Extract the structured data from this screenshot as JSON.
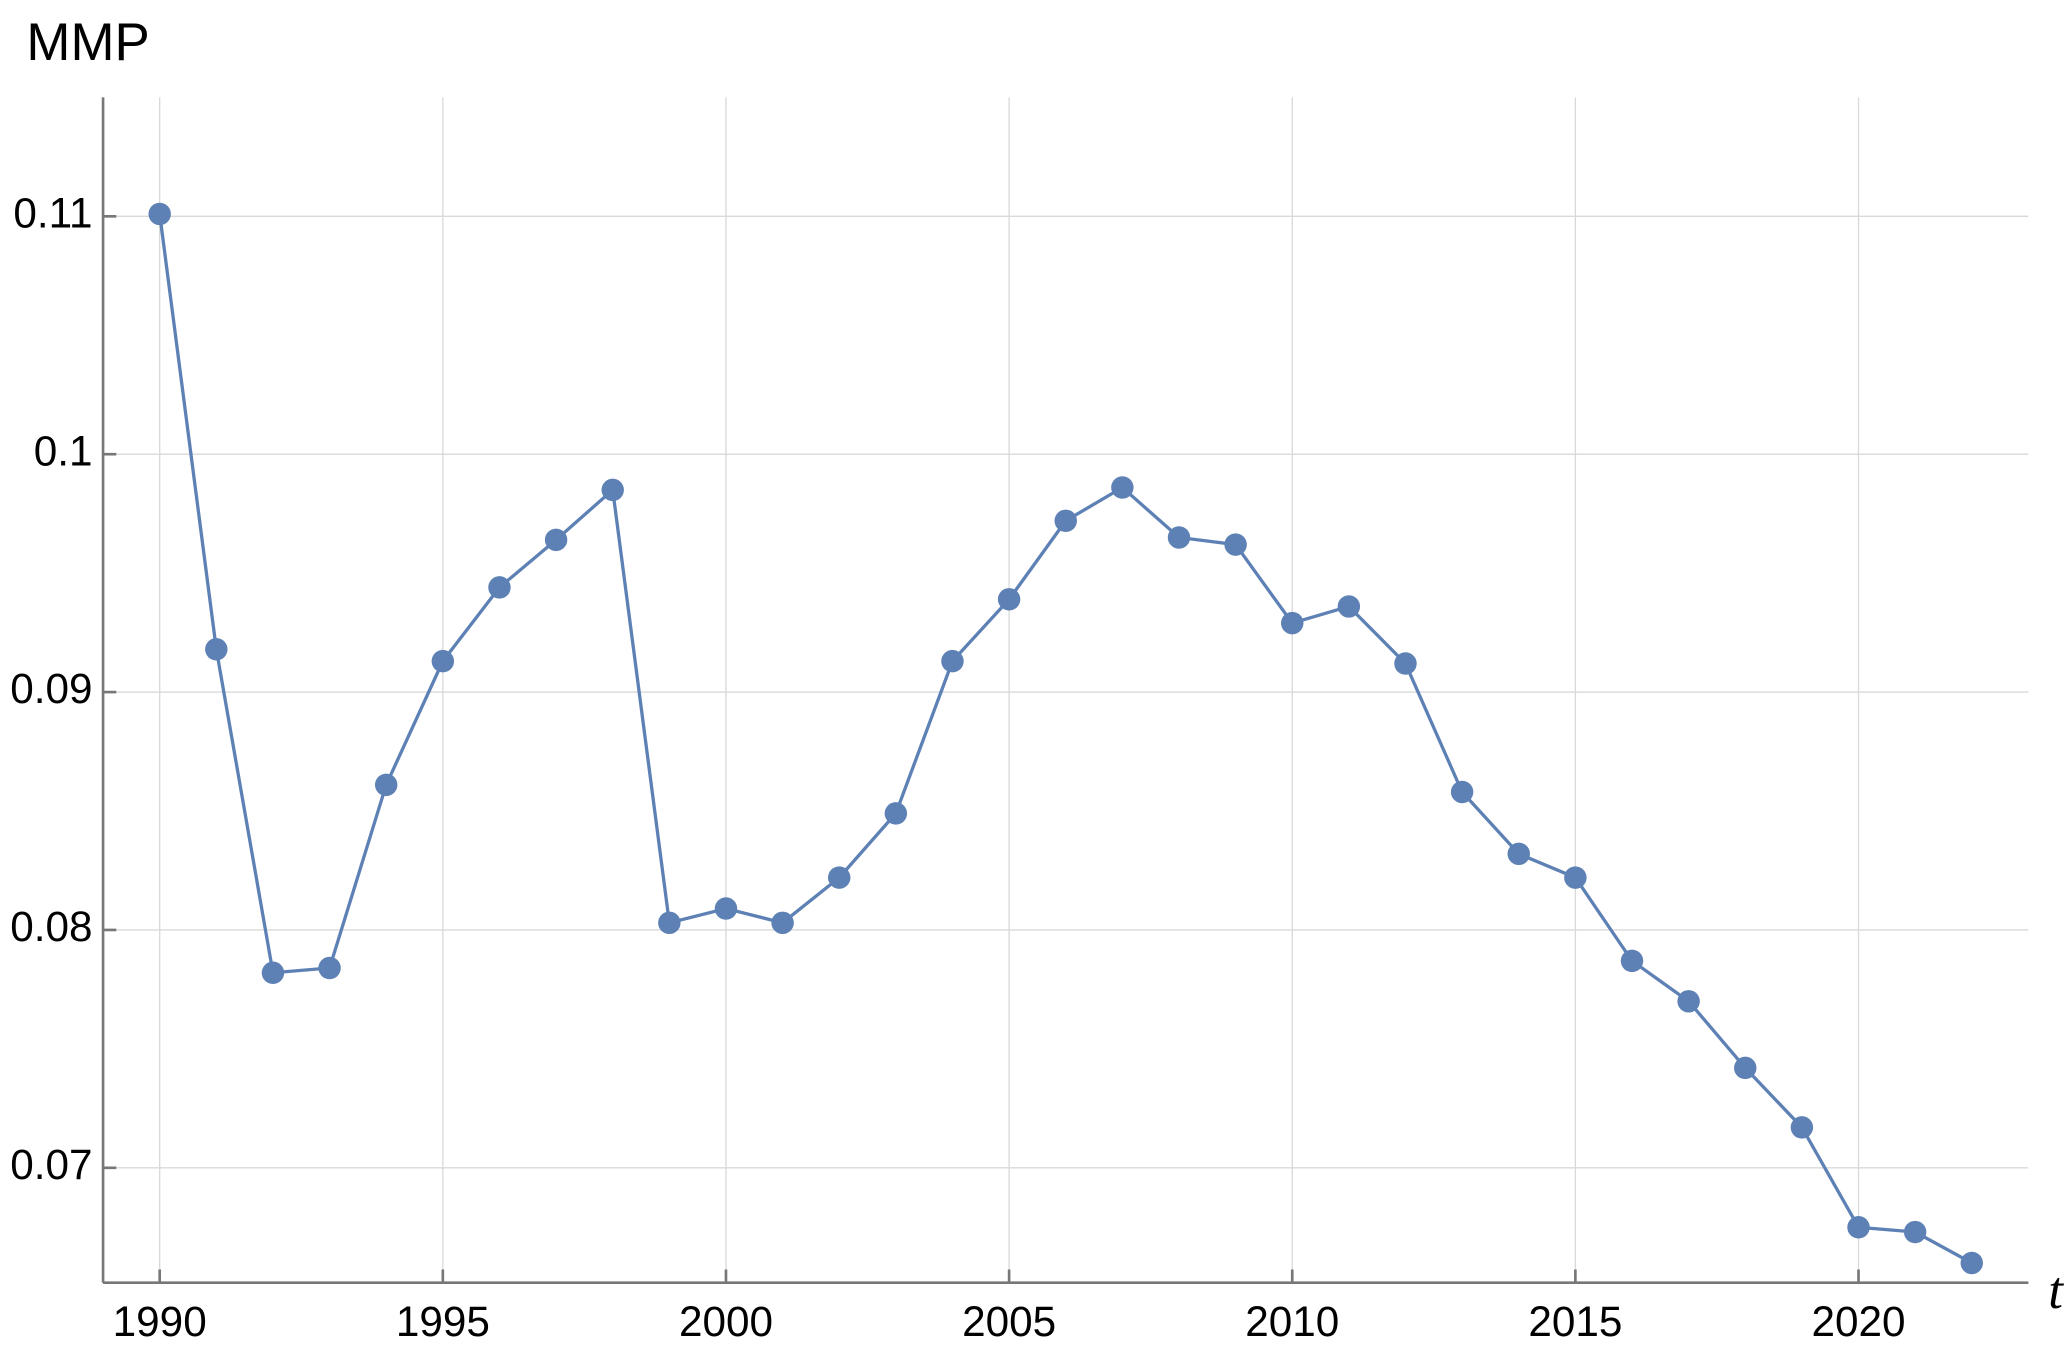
{
  "chart_data": {
    "type": "line",
    "y_label": "MMP",
    "x_label": "t",
    "x": [
      1990,
      1991,
      1992,
      1993,
      1994,
      1995,
      1996,
      1997,
      1998,
      1999,
      2000,
      2001,
      2002,
      2003,
      2004,
      2005,
      2006,
      2007,
      2008,
      2009,
      2010,
      2011,
      2012,
      2013,
      2014,
      2015,
      2016,
      2017,
      2018,
      2019,
      2020,
      2021,
      2022
    ],
    "series": [
      {
        "color": "#5e81b5",
        "values": [
          0.1101,
          0.0918,
          0.0782,
          0.0784,
          0.0861,
          0.0913,
          0.0944,
          0.0964,
          0.0985,
          0.0803,
          0.0809,
          0.0803,
          0.0822,
          0.0849,
          0.0913,
          0.0939,
          0.0972,
          0.0986,
          0.0965,
          0.0962,
          0.0929,
          0.0936,
          0.0912,
          0.0858,
          0.0832,
          0.0822,
          0.0787,
          0.077,
          0.0742,
          0.0717,
          0.0675,
          0.0673,
          0.066
        ]
      }
    ],
    "xlim": [
      1989,
      2023
    ],
    "ylim": [
      0.06517,
      0.115
    ],
    "xticks": [
      1990,
      1995,
      2000,
      2005,
      2010,
      2015,
      2020
    ],
    "yticks": [
      0.07,
      0.08,
      0.09,
      0.1,
      0.11
    ],
    "grid": true
  }
}
